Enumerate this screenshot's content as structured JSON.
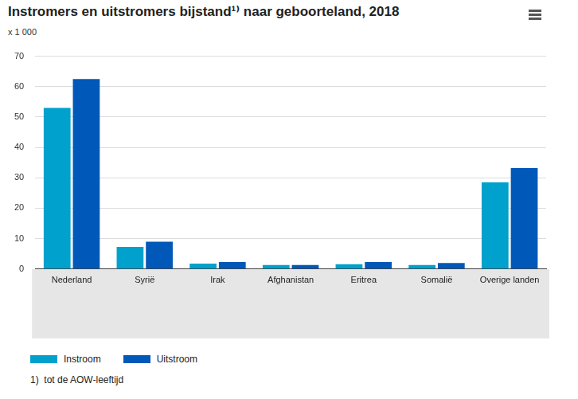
{
  "chart_data": {
    "type": "bar",
    "title": "Instromers en uitstromers bijstand¹⁾ naar geboorteland, 2018",
    "ylabel": "x 1 000",
    "categories": [
      "Nederland",
      "Syrië",
      "Irak",
      "Afghanistan",
      "Eritrea",
      "Somalië",
      "Overige landen"
    ],
    "series": [
      {
        "name": "Instroom",
        "color": "#00a1cd",
        "values": [
          53,
          7.3,
          1.8,
          1.3,
          1.6,
          1.3,
          28.5
        ]
      },
      {
        "name": "Uitstroom",
        "color": "#0058b8",
        "values": [
          62.5,
          9,
          2.3,
          1.3,
          2.3,
          2,
          33.2
        ]
      }
    ],
    "ylim": [
      0,
      70
    ],
    "yticks": [
      0,
      10,
      20,
      30,
      40,
      50,
      60,
      70
    ],
    "grid": true,
    "legend": "bottom-left",
    "annotations": [
      "1)  tot de AOW-leeftijd"
    ]
  }
}
